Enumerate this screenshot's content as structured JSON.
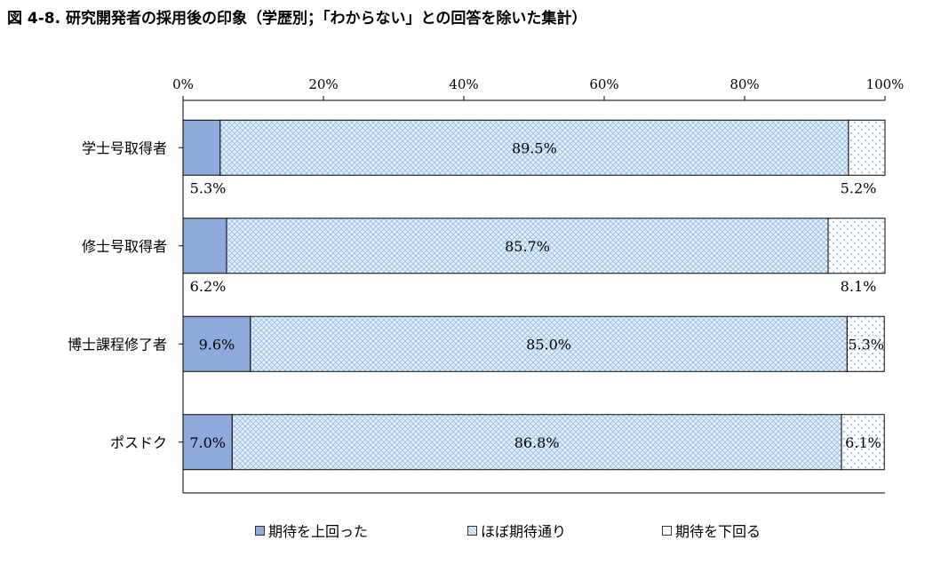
{
  "title": "図 4-8.  研究開発者の採用後の印象（学歴別；「わからない」との回答を除いた集計）",
  "chart_data": {
    "type": "bar",
    "orientation": "horizontal",
    "stacked": "100%",
    "categories": [
      "学士号取得者",
      "修士号取得者",
      "博士課程修了者",
      "ポスドク"
    ],
    "series": [
      {
        "name": "期待を上回った",
        "values": [
          5.3,
          6.2,
          9.6,
          7.0
        ],
        "color": "#8eaadb",
        "pattern": "solid"
      },
      {
        "name": "ほぼ期待通り",
        "values": [
          89.5,
          85.7,
          85.0,
          86.8
        ],
        "color": "#9dc3e6",
        "pattern": "crosshatch"
      },
      {
        "name": "期待を下回る",
        "values": [
          5.2,
          8.1,
          5.3,
          6.1
        ],
        "color": "#5b9bd5",
        "pattern": "dots"
      }
    ],
    "value_labels": [
      [
        "5.3%",
        "89.5%",
        "5.2%"
      ],
      [
        "6.2%",
        "85.7%",
        "8.1%"
      ],
      [
        "9.6%",
        "85.0%",
        "5.3%"
      ],
      [
        "7.0%",
        "86.8%",
        "6.1%"
      ]
    ],
    "xticks": [
      "0%",
      "20%",
      "40%",
      "60%",
      "80%",
      "100%"
    ],
    "xlim": [
      0,
      100
    ],
    "axis_position": "top",
    "grid": false,
    "legend_position": "bottom"
  }
}
